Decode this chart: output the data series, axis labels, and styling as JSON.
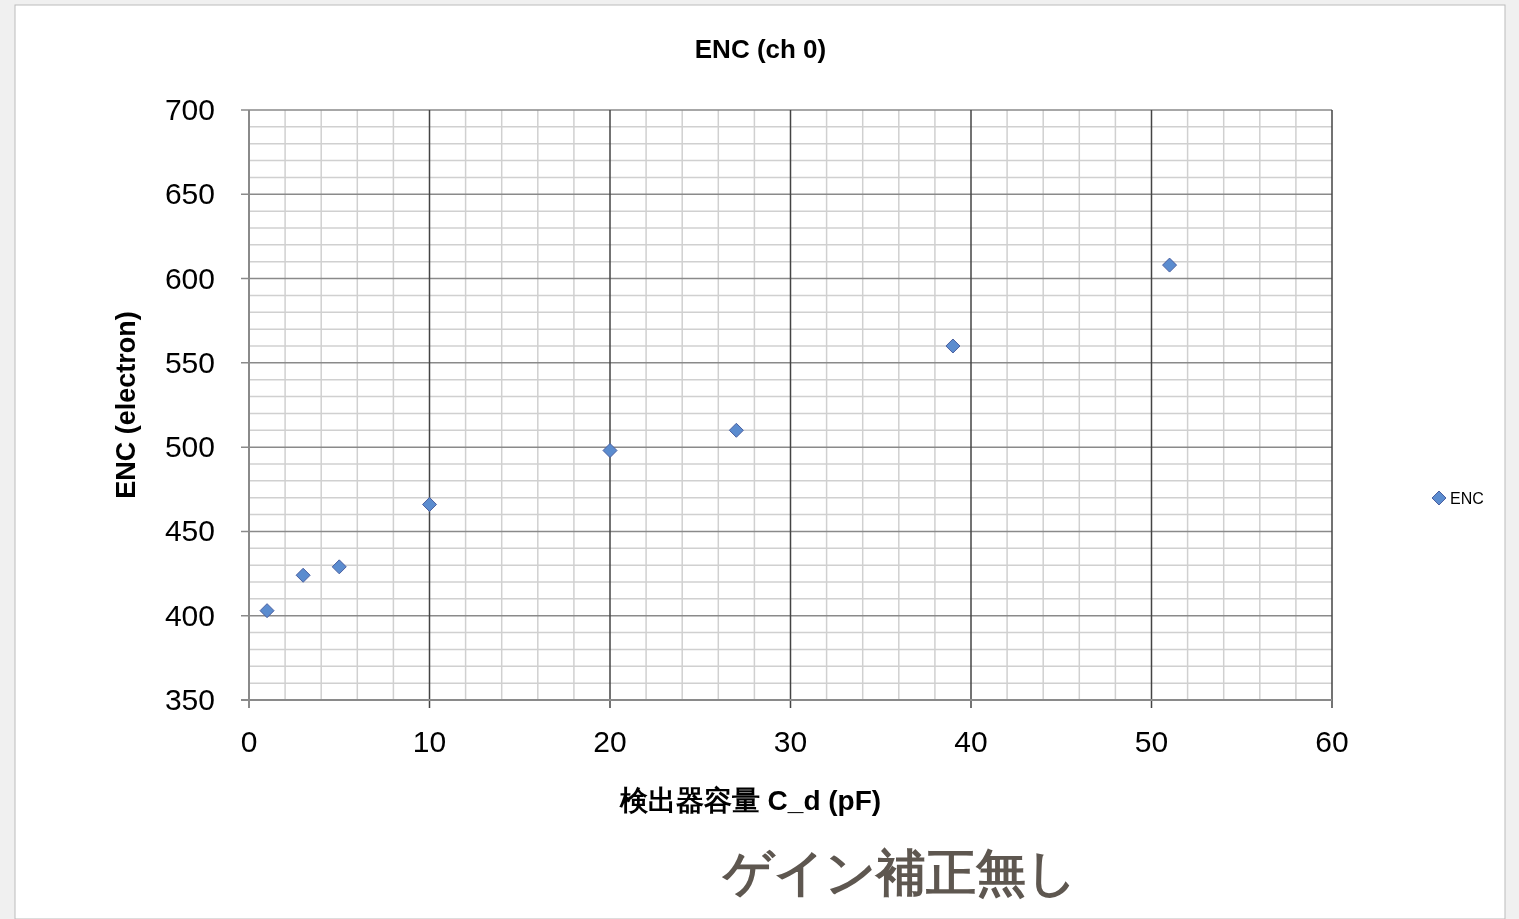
{
  "chart_data": {
    "type": "scatter",
    "title": "ENC (ch 0)",
    "xlabel": "検出器容量 C_d (pF)",
    "ylabel": "ENC (electron)",
    "x": [
      1,
      3,
      5,
      10,
      20,
      27,
      39,
      51
    ],
    "series": [
      {
        "name": "ENC",
        "color": "#5b8ccf",
        "values": [
          403,
          424,
          429,
          466,
          498,
          510,
          560,
          608
        ]
      }
    ],
    "xlim": [
      0,
      60
    ],
    "xticks": [
      0,
      10,
      20,
      30,
      40,
      50,
      60
    ],
    "ylim": [
      350,
      700
    ],
    "yticks": [
      350,
      400,
      450,
      500,
      550,
      600,
      650,
      700
    ],
    "grid": true,
    "legend": "right",
    "marker": "diamond",
    "annotations": [
      "ゲイン補正無し"
    ]
  }
}
